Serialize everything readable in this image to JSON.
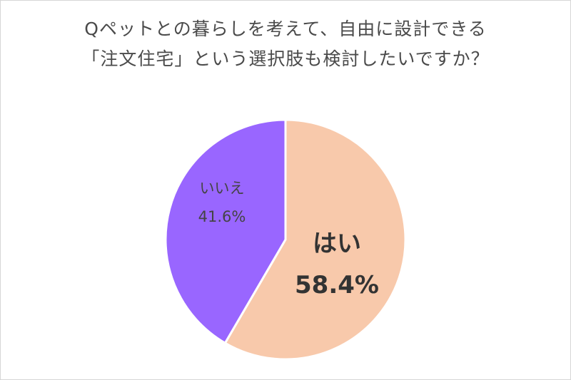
{
  "title_lines": [
    "Qペットとの暮らしを考えて、自由に設計できる",
    "「注文住宅」という選択肢も検討したいですか？"
  ],
  "chart_data": {
    "type": "pie",
    "title": "Qペットとの暮らしを考えて、自由に設計できる「注文住宅」という選択肢も検討したいですか？",
    "slices": [
      {
        "label": "はい",
        "value": 58.4,
        "value_label": "58.4%",
        "color": "#f8c9ab"
      },
      {
        "label": "いいえ",
        "value": 41.6,
        "value_label": "41.6%",
        "color": "#9966ff"
      }
    ],
    "start": "top",
    "direction": "clockwise",
    "legend": "none"
  }
}
